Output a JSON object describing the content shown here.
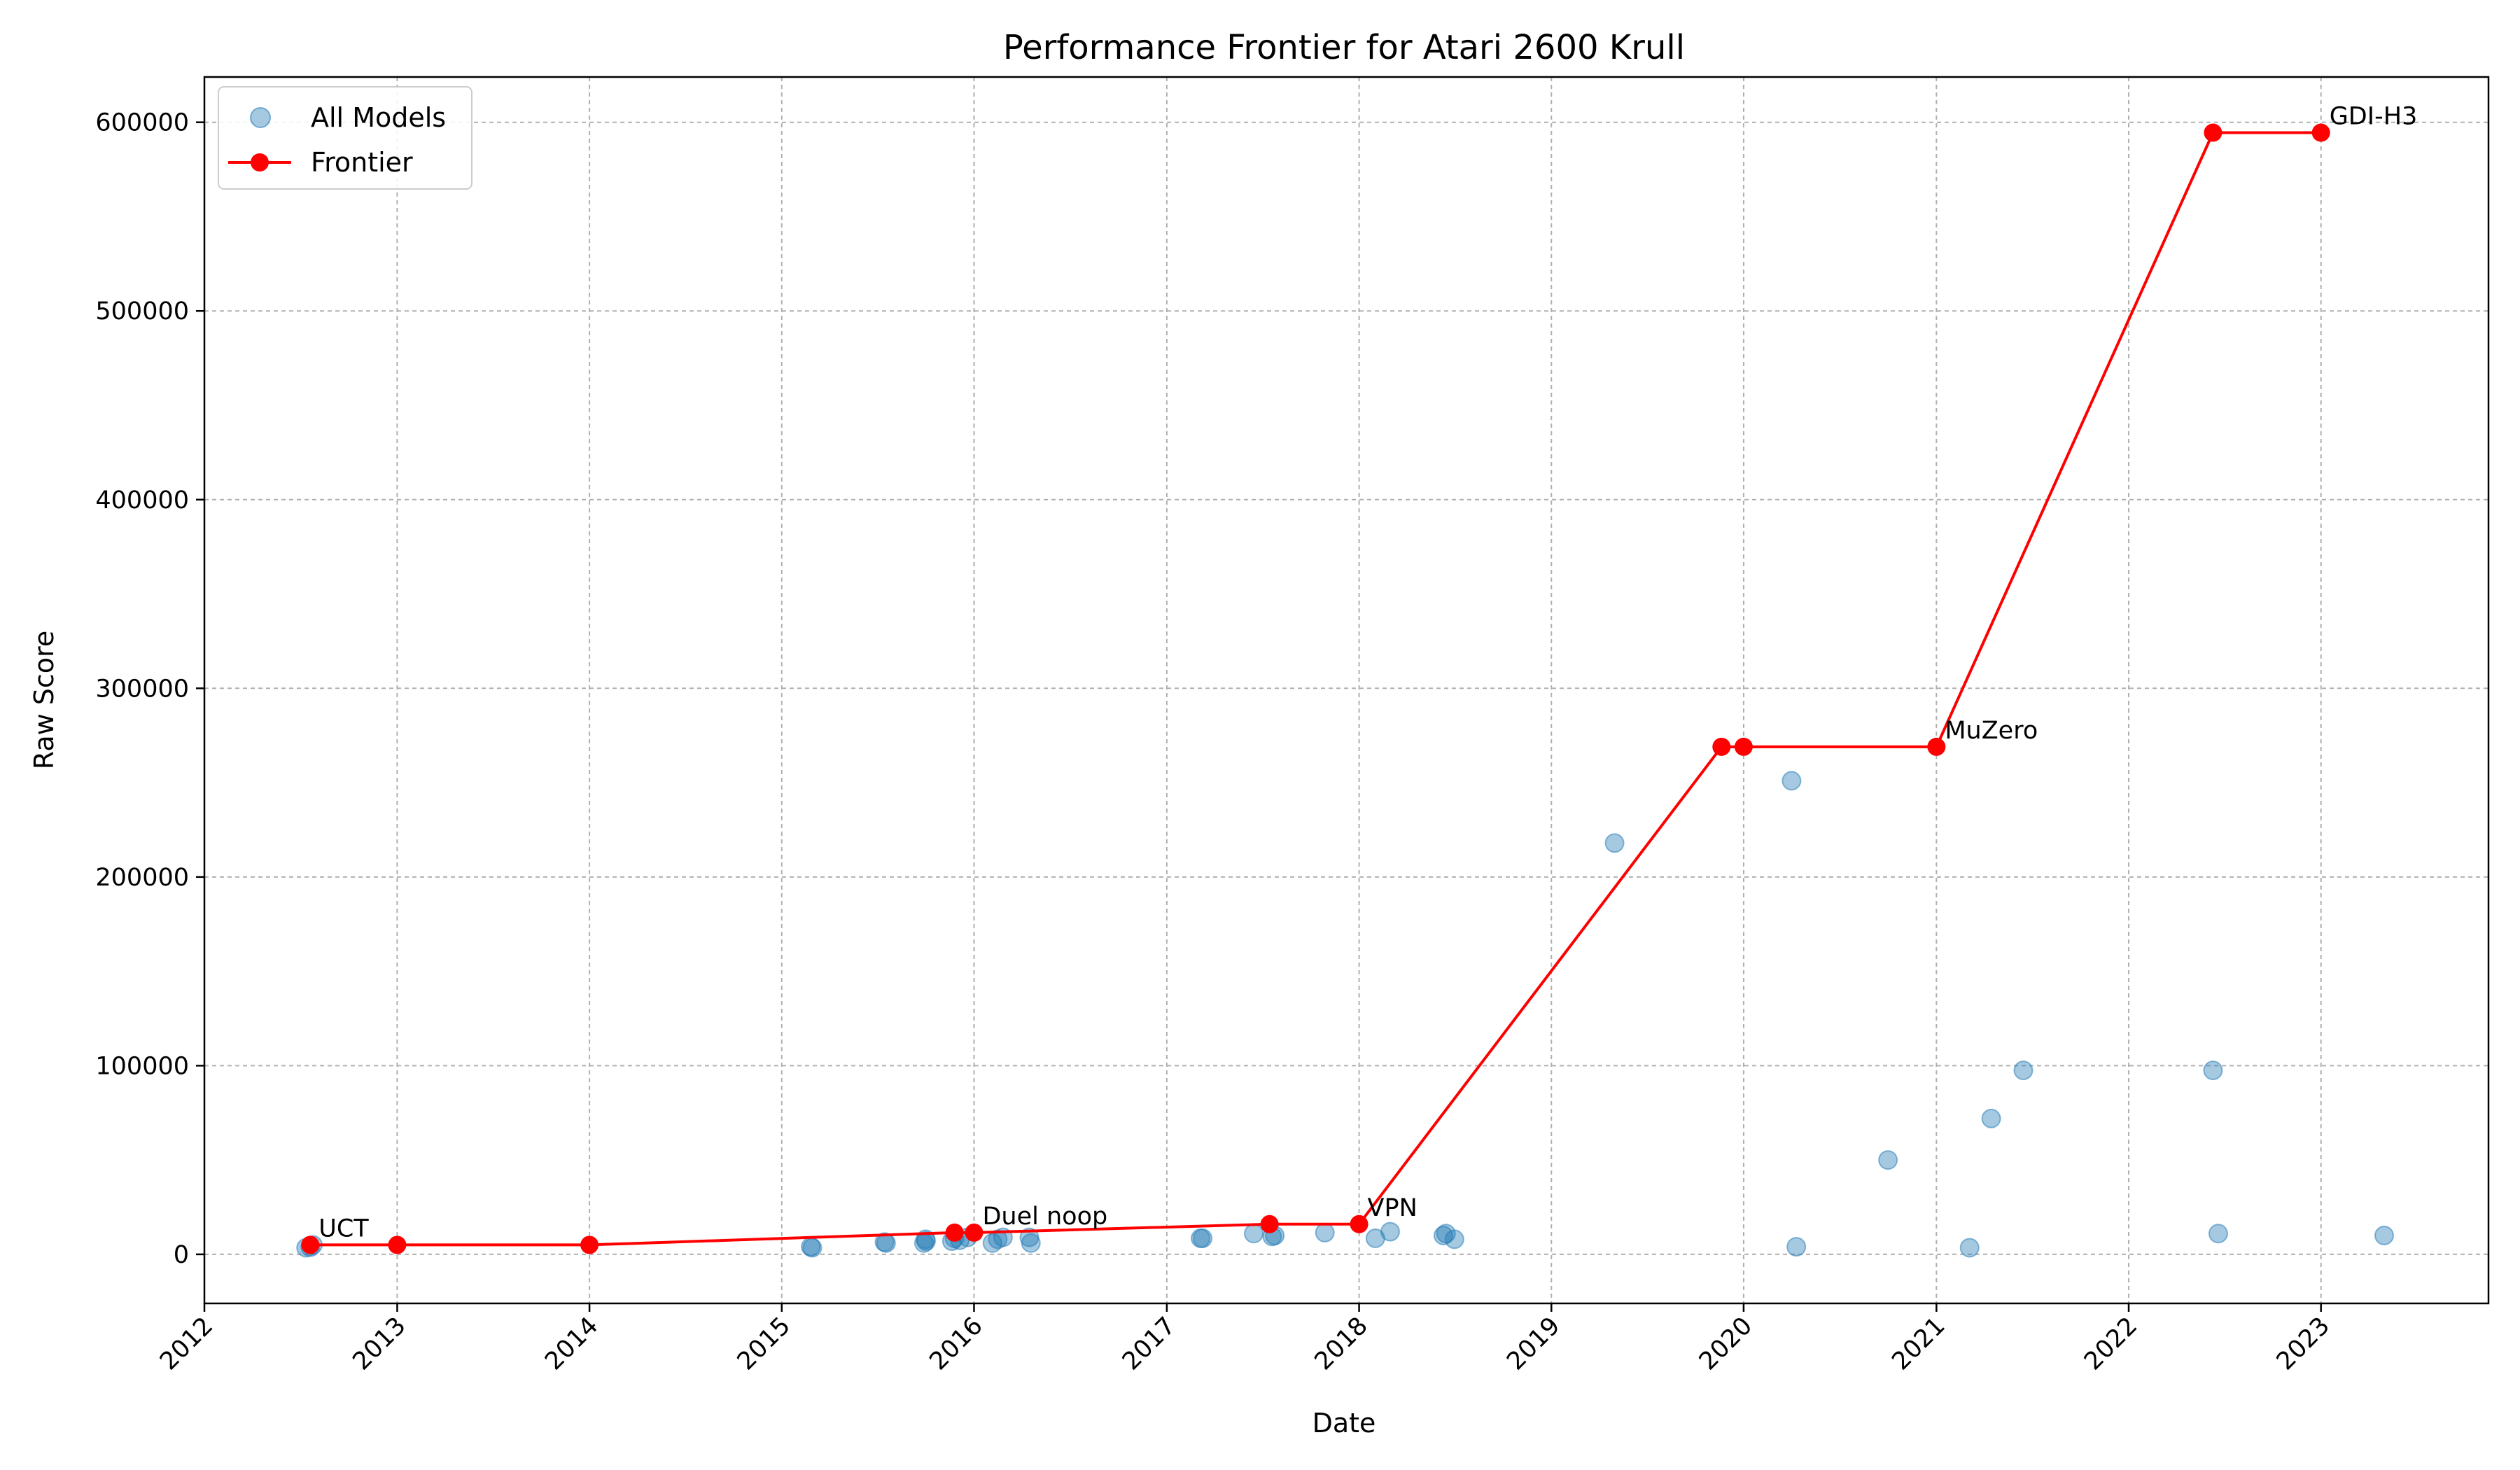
{
  "chart_data": {
    "type": "scatter",
    "title": "Performance Frontier for Atari 2600 Krull",
    "xlabel": "Date",
    "ylabel": "Raw Score",
    "xlim": [
      "2012-01-01",
      "2023-11-15"
    ],
    "ylim": [
      -26000,
      624000
    ],
    "x_ticks": [
      "2012",
      "2013",
      "2014",
      "2015",
      "2016",
      "2017",
      "2018",
      "2019",
      "2020",
      "2021",
      "2022",
      "2023"
    ],
    "y_ticks": [
      0,
      100000,
      200000,
      300000,
      400000,
      500000,
      600000
    ],
    "grid": true,
    "legend_position": "top-left",
    "colors": {
      "all_models": "#1f77b4",
      "frontier": "#ff0000",
      "grid": "#b0b0b0"
    },
    "series": [
      {
        "name": "All Models",
        "kind": "scatter",
        "points": [
          {
            "x": "2012-07-12",
            "y": 3500
          },
          {
            "x": "2012-07-20",
            "y": 3800
          },
          {
            "x": "2012-07-25",
            "y": 5000
          },
          {
            "x": "2015-02-25",
            "y": 4000
          },
          {
            "x": "2015-02-28",
            "y": 3500
          },
          {
            "x": "2015-07-15",
            "y": 6500
          },
          {
            "x": "2015-07-18",
            "y": 6000
          },
          {
            "x": "2015-09-28",
            "y": 6000
          },
          {
            "x": "2015-10-01",
            "y": 8000
          },
          {
            "x": "2015-10-02",
            "y": 7000
          },
          {
            "x": "2015-11-20",
            "y": 7000
          },
          {
            "x": "2015-11-25",
            "y": 8500
          },
          {
            "x": "2015-12-05",
            "y": 7500
          },
          {
            "x": "2015-12-20",
            "y": 9000
          },
          {
            "x": "2016-02-05",
            "y": 6000
          },
          {
            "x": "2016-02-15",
            "y": 8000
          },
          {
            "x": "2016-02-25",
            "y": 9000
          },
          {
            "x": "2016-04-15",
            "y": 9000
          },
          {
            "x": "2016-04-18",
            "y": 6000
          },
          {
            "x": "2017-03-06",
            "y": 8500
          },
          {
            "x": "2017-03-10",
            "y": 8500
          },
          {
            "x": "2017-06-15",
            "y": 11000
          },
          {
            "x": "2017-07-20",
            "y": 9500
          },
          {
            "x": "2017-07-25",
            "y": 10000
          },
          {
            "x": "2017-10-28",
            "y": 11500
          },
          {
            "x": "2018-02-01",
            "y": 8500
          },
          {
            "x": "2018-03-01",
            "y": 12000
          },
          {
            "x": "2018-06-10",
            "y": 10000
          },
          {
            "x": "2018-06-15",
            "y": 11000
          },
          {
            "x": "2018-07-01",
            "y": 8000
          },
          {
            "x": "2019-05-01",
            "y": 218000
          },
          {
            "x": "2020-04-01",
            "y": 251000
          },
          {
            "x": "2020-04-10",
            "y": 4000
          },
          {
            "x": "2020-10-01",
            "y": 50000
          },
          {
            "x": "2021-03-05",
            "y": 3500
          },
          {
            "x": "2021-04-15",
            "y": 72000
          },
          {
            "x": "2021-06-15",
            "y": 97500
          },
          {
            "x": "2022-06-10",
            "y": 97500
          },
          {
            "x": "2022-06-20",
            "y": 11000
          },
          {
            "x": "2023-05-01",
            "y": 10000
          }
        ]
      },
      {
        "name": "Frontier",
        "kind": "line",
        "points": [
          {
            "x": "2012-07-20",
            "y": 5000
          },
          {
            "x": "2013-01-01",
            "y": 5000
          },
          {
            "x": "2014-01-01",
            "y": 5000
          },
          {
            "x": "2015-11-25",
            "y": 11500
          },
          {
            "x": "2016-01-01",
            "y": 11500
          },
          {
            "x": "2017-07-15",
            "y": 16000
          },
          {
            "x": "2018-01-01",
            "y": 16000
          },
          {
            "x": "2019-11-20",
            "y": 269000
          },
          {
            "x": "2020-01-01",
            "y": 269000
          },
          {
            "x": "2021-01-01",
            "y": 269000
          },
          {
            "x": "2022-06-10",
            "y": 594500
          },
          {
            "x": "2023-01-01",
            "y": 594500
          }
        ]
      }
    ],
    "annotations": [
      {
        "text": "UCT",
        "x": "2012-07-20",
        "y": 5000
      },
      {
        "text": "Duel noop",
        "x": "2016-01-01",
        "y": 11500
      },
      {
        "text": "VPN",
        "x": "2018-01-01",
        "y": 16000
      },
      {
        "text": "MuZero",
        "x": "2021-01-01",
        "y": 269000
      },
      {
        "text": "GDI-H3",
        "x": "2023-01-01",
        "y": 594500
      }
    ]
  }
}
